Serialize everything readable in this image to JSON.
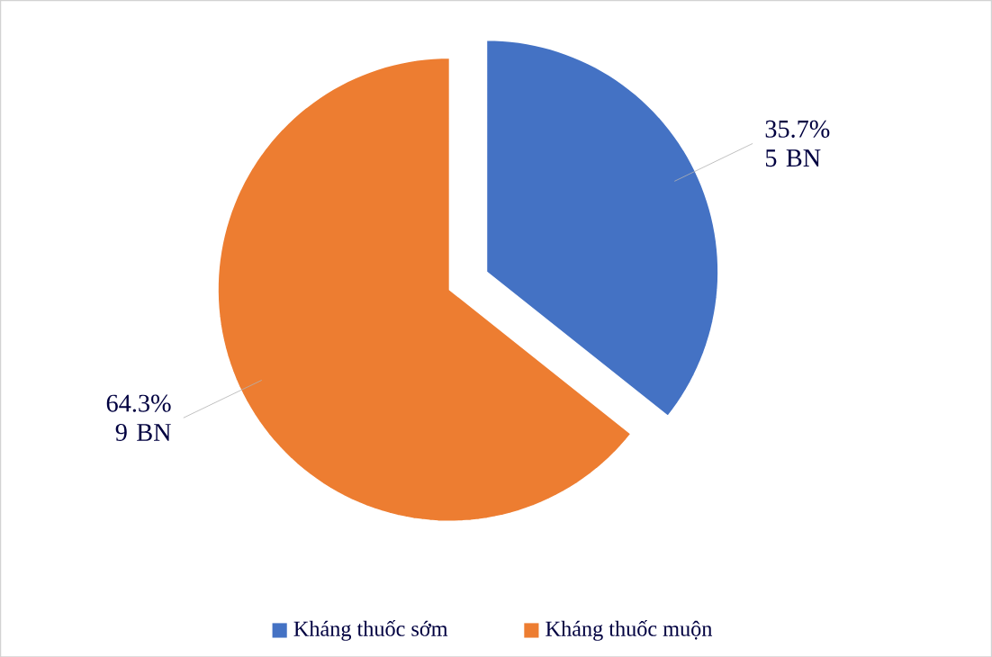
{
  "chart_data": {
    "type": "pie",
    "categories": [
      "Kháng thuốc sớm",
      "Kháng thuốc muộn"
    ],
    "values": [
      35.7,
      64.3
    ],
    "colors": [
      "#4472c4",
      "#ed7d31"
    ],
    "value_labels": [
      "35.7% 5 BN",
      "64.3% 9 BN"
    ],
    "legend": "bottom"
  }
}
